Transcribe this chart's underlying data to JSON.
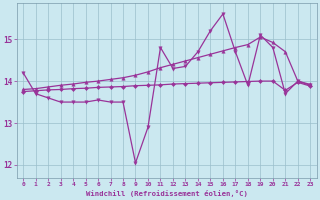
{
  "xlabel": "Windchill (Refroidissement éolien,°C)",
  "background_color": "#cbe8f0",
  "line_color": "#993399",
  "x_data": [
    0,
    1,
    2,
    3,
    4,
    5,
    6,
    7,
    8,
    9,
    10,
    11,
    12,
    13,
    14,
    15,
    16,
    17,
    18,
    19,
    20,
    21,
    22,
    23
  ],
  "y_main": [
    14.2,
    13.7,
    13.6,
    13.5,
    13.5,
    13.5,
    13.55,
    13.5,
    13.5,
    12.05,
    12.9,
    14.8,
    14.3,
    14.35,
    14.7,
    15.2,
    15.6,
    14.7,
    13.9,
    15.1,
    14.8,
    13.7,
    14.0,
    13.9
  ],
  "y_upper": [
    13.8,
    13.82,
    13.86,
    13.9,
    13.93,
    13.97,
    14.0,
    14.04,
    14.08,
    14.14,
    14.22,
    14.32,
    14.4,
    14.48,
    14.56,
    14.64,
    14.72,
    14.8,
    14.87,
    15.05,
    14.92,
    14.7,
    14.0,
    13.92
  ],
  "y_lower": [
    13.75,
    13.77,
    13.79,
    13.8,
    13.82,
    13.83,
    13.85,
    13.86,
    13.87,
    13.89,
    13.9,
    13.91,
    13.93,
    13.94,
    13.95,
    13.96,
    13.97,
    13.98,
    13.99,
    14.0,
    14.0,
    13.78,
    13.97,
    13.88
  ],
  "ylim": [
    11.7,
    15.85
  ],
  "xlim": [
    -0.5,
    23.5
  ],
  "yticks": [
    12,
    13,
    14,
    15
  ],
  "xticks": [
    0,
    1,
    2,
    3,
    4,
    5,
    6,
    7,
    8,
    9,
    10,
    11,
    12,
    13,
    14,
    15,
    16,
    17,
    18,
    19,
    20,
    21,
    22,
    23
  ]
}
